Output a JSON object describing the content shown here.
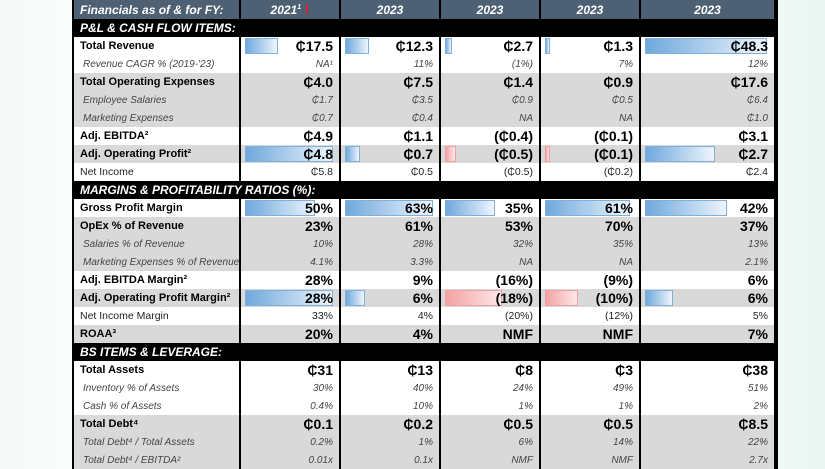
{
  "header": {
    "label": "Financials as of & for FY:",
    "years": [
      "2021",
      "2023",
      "2023",
      "2023",
      "2023"
    ],
    "year1_footnote": "1",
    "warning": "!"
  },
  "sections": [
    {
      "title": "P&L & CASH FLOW ITEMS:",
      "rows": [
        {
          "label": "Total Revenue",
          "style": "big",
          "bg": "w",
          "values": [
            "₵17.5",
            "₵12.3",
            "₵2.7",
            "₵1.3",
            "₵48.3"
          ],
          "bars": [
            17.5,
            12.3,
            2.7,
            1.3,
            48.3
          ]
        },
        {
          "label": "Revenue CAGR % (2019-'23)",
          "style": "it",
          "bg": "w",
          "values": [
            "NA¹",
            "11%",
            "(1%)",
            "7%",
            "12%"
          ]
        },
        {
          "label": "Total Operating Expenses",
          "style": "big",
          "bg": "g",
          "values": [
            "₵4.0",
            "₵7.5",
            "₵1.4",
            "₵0.9",
            "₵17.6"
          ]
        },
        {
          "label": "Employee Salaries",
          "style": "it",
          "bg": "g",
          "values": [
            "₵1.7",
            "₵3.5",
            "₵0.9",
            "₵0.5",
            "₵6.4"
          ]
        },
        {
          "label": "Marketing Expenses",
          "style": "it",
          "bg": "g",
          "values": [
            "₵0.7",
            "₵0.4",
            "NA",
            "NA",
            "₵1.0"
          ]
        },
        {
          "label": "Adj. EBITDA²",
          "style": "big",
          "bg": "w",
          "values": [
            "₵4.9",
            "₵1.1",
            "(₵0.4)",
            "(₵0.1)",
            "₵3.1"
          ]
        },
        {
          "label": "Adj. Operating Profit²",
          "style": "big",
          "bg": "g",
          "values": [
            "₵4.8",
            "₵0.7",
            "(₵0.5)",
            "(₵0.1)",
            "₵2.7"
          ],
          "bars": [
            4.8,
            0.7,
            -0.5,
            -0.1,
            2.7
          ]
        },
        {
          "label": "Net Income",
          "style": "pl",
          "bg": "w",
          "values": [
            "₵5.8",
            "₵0.5",
            "(₵0.5)",
            "(₵0.2)",
            "₵2.4"
          ]
        }
      ]
    },
    {
      "title": "MARGINS & PROFITABILITY RATIOS (%):",
      "rows": [
        {
          "label": "Gross Profit Margin",
          "style": "big",
          "bg": "w",
          "values": [
            "50%",
            "63%",
            "35%",
            "61%",
            "42%"
          ],
          "bars": [
            50,
            63,
            35,
            61,
            42
          ]
        },
        {
          "label": "OpEx % of Revenue",
          "style": "big",
          "bg": "g",
          "values": [
            "23%",
            "61%",
            "53%",
            "70%",
            "37%"
          ]
        },
        {
          "label": "Salaries % of Revenue",
          "style": "it",
          "bg": "g",
          "values": [
            "10%",
            "28%",
            "32%",
            "35%",
            "13%"
          ]
        },
        {
          "label": "Marketing Expenses % of Revenue",
          "style": "it",
          "bg": "g",
          "values": [
            "4.1%",
            "3.3%",
            "NA",
            "NA",
            "2.1%"
          ]
        },
        {
          "label": "Adj. EBITDA Margin²",
          "style": "big",
          "bg": "w",
          "values": [
            "28%",
            "9%",
            "(16%)",
            "(9%)",
            "6%"
          ]
        },
        {
          "label": "Adj. Operating Profit Margin²",
          "style": "big",
          "bg": "g",
          "values": [
            "28%",
            "6%",
            "(18%)",
            "(10%)",
            "6%"
          ],
          "bars": [
            28,
            6,
            -18,
            -10,
            6
          ]
        },
        {
          "label": "Net Income Margin",
          "style": "pl",
          "bg": "w",
          "values": [
            "33%",
            "4%",
            "(20%)",
            "(12%)",
            "5%"
          ]
        },
        {
          "label": "ROAA³",
          "style": "big",
          "bg": "g",
          "values": [
            "20%",
            "4%",
            "NMF",
            "NMF",
            "7%"
          ]
        }
      ]
    },
    {
      "title": "BS ITEMS & LEVERAGE:",
      "rows": [
        {
          "label": "Total Assets",
          "style": "big",
          "bg": "w",
          "values": [
            "₵31",
            "₵13",
            "₵8",
            "₵3",
            "₵38"
          ]
        },
        {
          "label": "Inventory % of Assets",
          "style": "it",
          "bg": "w",
          "values": [
            "30%",
            "40%",
            "24%",
            "49%",
            "51%"
          ]
        },
        {
          "label": "Cash % of Assets",
          "style": "it",
          "bg": "w",
          "values": [
            "0.4%",
            "10%",
            "1%",
            "1%",
            "2%"
          ]
        },
        {
          "label": "Total Debt⁴",
          "style": "big",
          "bg": "g",
          "values": [
            "₵0.1",
            "₵0.2",
            "₵0.5",
            "₵0.5",
            "₵8.5"
          ]
        },
        {
          "label": "Total Debt⁴ / Total Assets",
          "style": "it",
          "bg": "g",
          "values": [
            "0.2%",
            "1%",
            "6%",
            "14%",
            "22%"
          ]
        },
        {
          "label": "Total Debt⁴ / EBITDA²",
          "style": "it",
          "bg": "g",
          "values": [
            "0.01x",
            "0.1x",
            "NMF",
            "NMF",
            "2.7x"
          ]
        }
      ]
    }
  ]
}
